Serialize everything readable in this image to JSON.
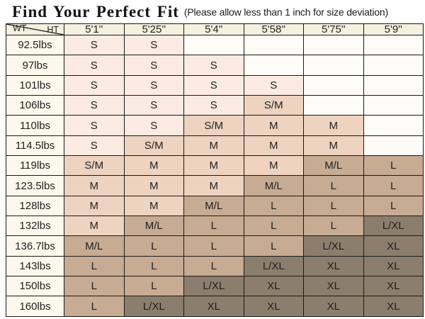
{
  "chart_data": {
    "type": "table",
    "title": "Find Your Perfect Fit",
    "subtitle": "(Please allow less than 1 inch for size deviation)",
    "corner": {
      "column_axis_label": "HT",
      "row_axis_label": "WT"
    },
    "height_columns": [
      "5'1''",
      "5'25''",
      "5'4''",
      "5'58''",
      "5'75''",
      "5'9''"
    ],
    "weight_rows": [
      {
        "weight": "92.5lbs",
        "sizes": [
          "S",
          "S",
          "",
          "",
          "",
          ""
        ]
      },
      {
        "weight": "97lbs",
        "sizes": [
          "S",
          "S",
          "S",
          "",
          "",
          ""
        ]
      },
      {
        "weight": "101lbs",
        "sizes": [
          "S",
          "S",
          "S",
          "S",
          "",
          ""
        ]
      },
      {
        "weight": "106lbs",
        "sizes": [
          "S",
          "S",
          "S",
          "S/M",
          "",
          ""
        ]
      },
      {
        "weight": "110lbs",
        "sizes": [
          "S",
          "S",
          "S/M",
          "M",
          "M",
          ""
        ]
      },
      {
        "weight": "114.5lbs",
        "sizes": [
          "S",
          "S/M",
          "M",
          "M",
          "M",
          ""
        ]
      },
      {
        "weight": "119lbs",
        "sizes": [
          "S/M",
          "M",
          "M",
          "M",
          "M/L",
          "L"
        ]
      },
      {
        "weight": "123.5lbs",
        "sizes": [
          "M",
          "M",
          "M",
          "M/L",
          "L",
          "L"
        ]
      },
      {
        "weight": "128lbs",
        "sizes": [
          "M",
          "M",
          "M/L",
          "L",
          "L",
          "L"
        ]
      },
      {
        "weight": "132lbs",
        "sizes": [
          "M",
          "M/L",
          "L",
          "L",
          "L",
          "L/XL"
        ]
      },
      {
        "weight": "136.7lbs",
        "sizes": [
          "M/L",
          "L",
          "L",
          "L",
          "L/XL",
          "XL"
        ]
      },
      {
        "weight": "143lbs",
        "sizes": [
          "L",
          "L",
          "L",
          "L/XL",
          "XL",
          "XL"
        ]
      },
      {
        "weight": "150lbs",
        "sizes": [
          "L",
          "L",
          "L/XL",
          "XL",
          "XL",
          "XL"
        ]
      },
      {
        "weight": "160lbs",
        "sizes": [
          "L",
          "L/XL",
          "XL",
          "XL",
          "XL",
          "XL"
        ]
      }
    ]
  },
  "colors": {
    "size_s_bg": "#fbebe2",
    "size_m_bg": "#eed3c1",
    "size_l_bg": "#c7ab92",
    "size_xl_bg": "#8c7e6c",
    "header_bg": "#f5f1df",
    "weight_label_bg": "#fbf8ec",
    "empty_cell_bg": "#fdfcf6",
    "border": "#1a1a1a",
    "text": "#1f1f1f"
  },
  "size_color_map": {
    "S": "size_s_bg",
    "S/M": "size_m_bg",
    "M": "size_m_bg",
    "M/L": "size_l_bg",
    "L": "size_l_bg",
    "L/XL": "size_xl_bg",
    "XL": "size_xl_bg"
  }
}
